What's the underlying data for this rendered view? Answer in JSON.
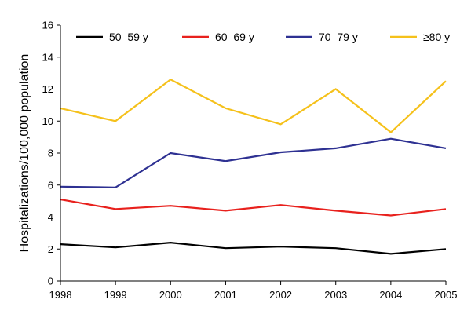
{
  "chart_data": {
    "type": "line",
    "title": "",
    "xlabel": "",
    "ylabel": "Hospitalizations/100,000 population",
    "ylim": [
      0,
      16
    ],
    "yticks": [
      0,
      2,
      4,
      6,
      8,
      10,
      12,
      14,
      16
    ],
    "x": [
      "1998",
      "1999",
      "2000",
      "2001",
      "2002",
      "2003",
      "2004",
      "2005"
    ],
    "grid": false,
    "legend_position": "top",
    "series": [
      {
        "name": "50–59 y",
        "color": "#000000",
        "values": [
          2.3,
          2.1,
          2.4,
          2.05,
          2.15,
          2.05,
          1.7,
          2.0
        ]
      },
      {
        "name": "60–69 y",
        "color": "#e8211d",
        "values": [
          5.1,
          4.5,
          4.7,
          4.4,
          4.75,
          4.4,
          4.1,
          4.5
        ]
      },
      {
        "name": "70–79 y",
        "color": "#2e3192",
        "values": [
          5.9,
          5.85,
          8.0,
          7.5,
          8.05,
          8.3,
          8.9,
          8.3
        ]
      },
      {
        "name": "≥80 y",
        "color": "#f5c11b",
        "values": [
          10.8,
          10.0,
          12.6,
          10.8,
          9.8,
          12.0,
          9.3,
          12.5
        ]
      }
    ]
  }
}
